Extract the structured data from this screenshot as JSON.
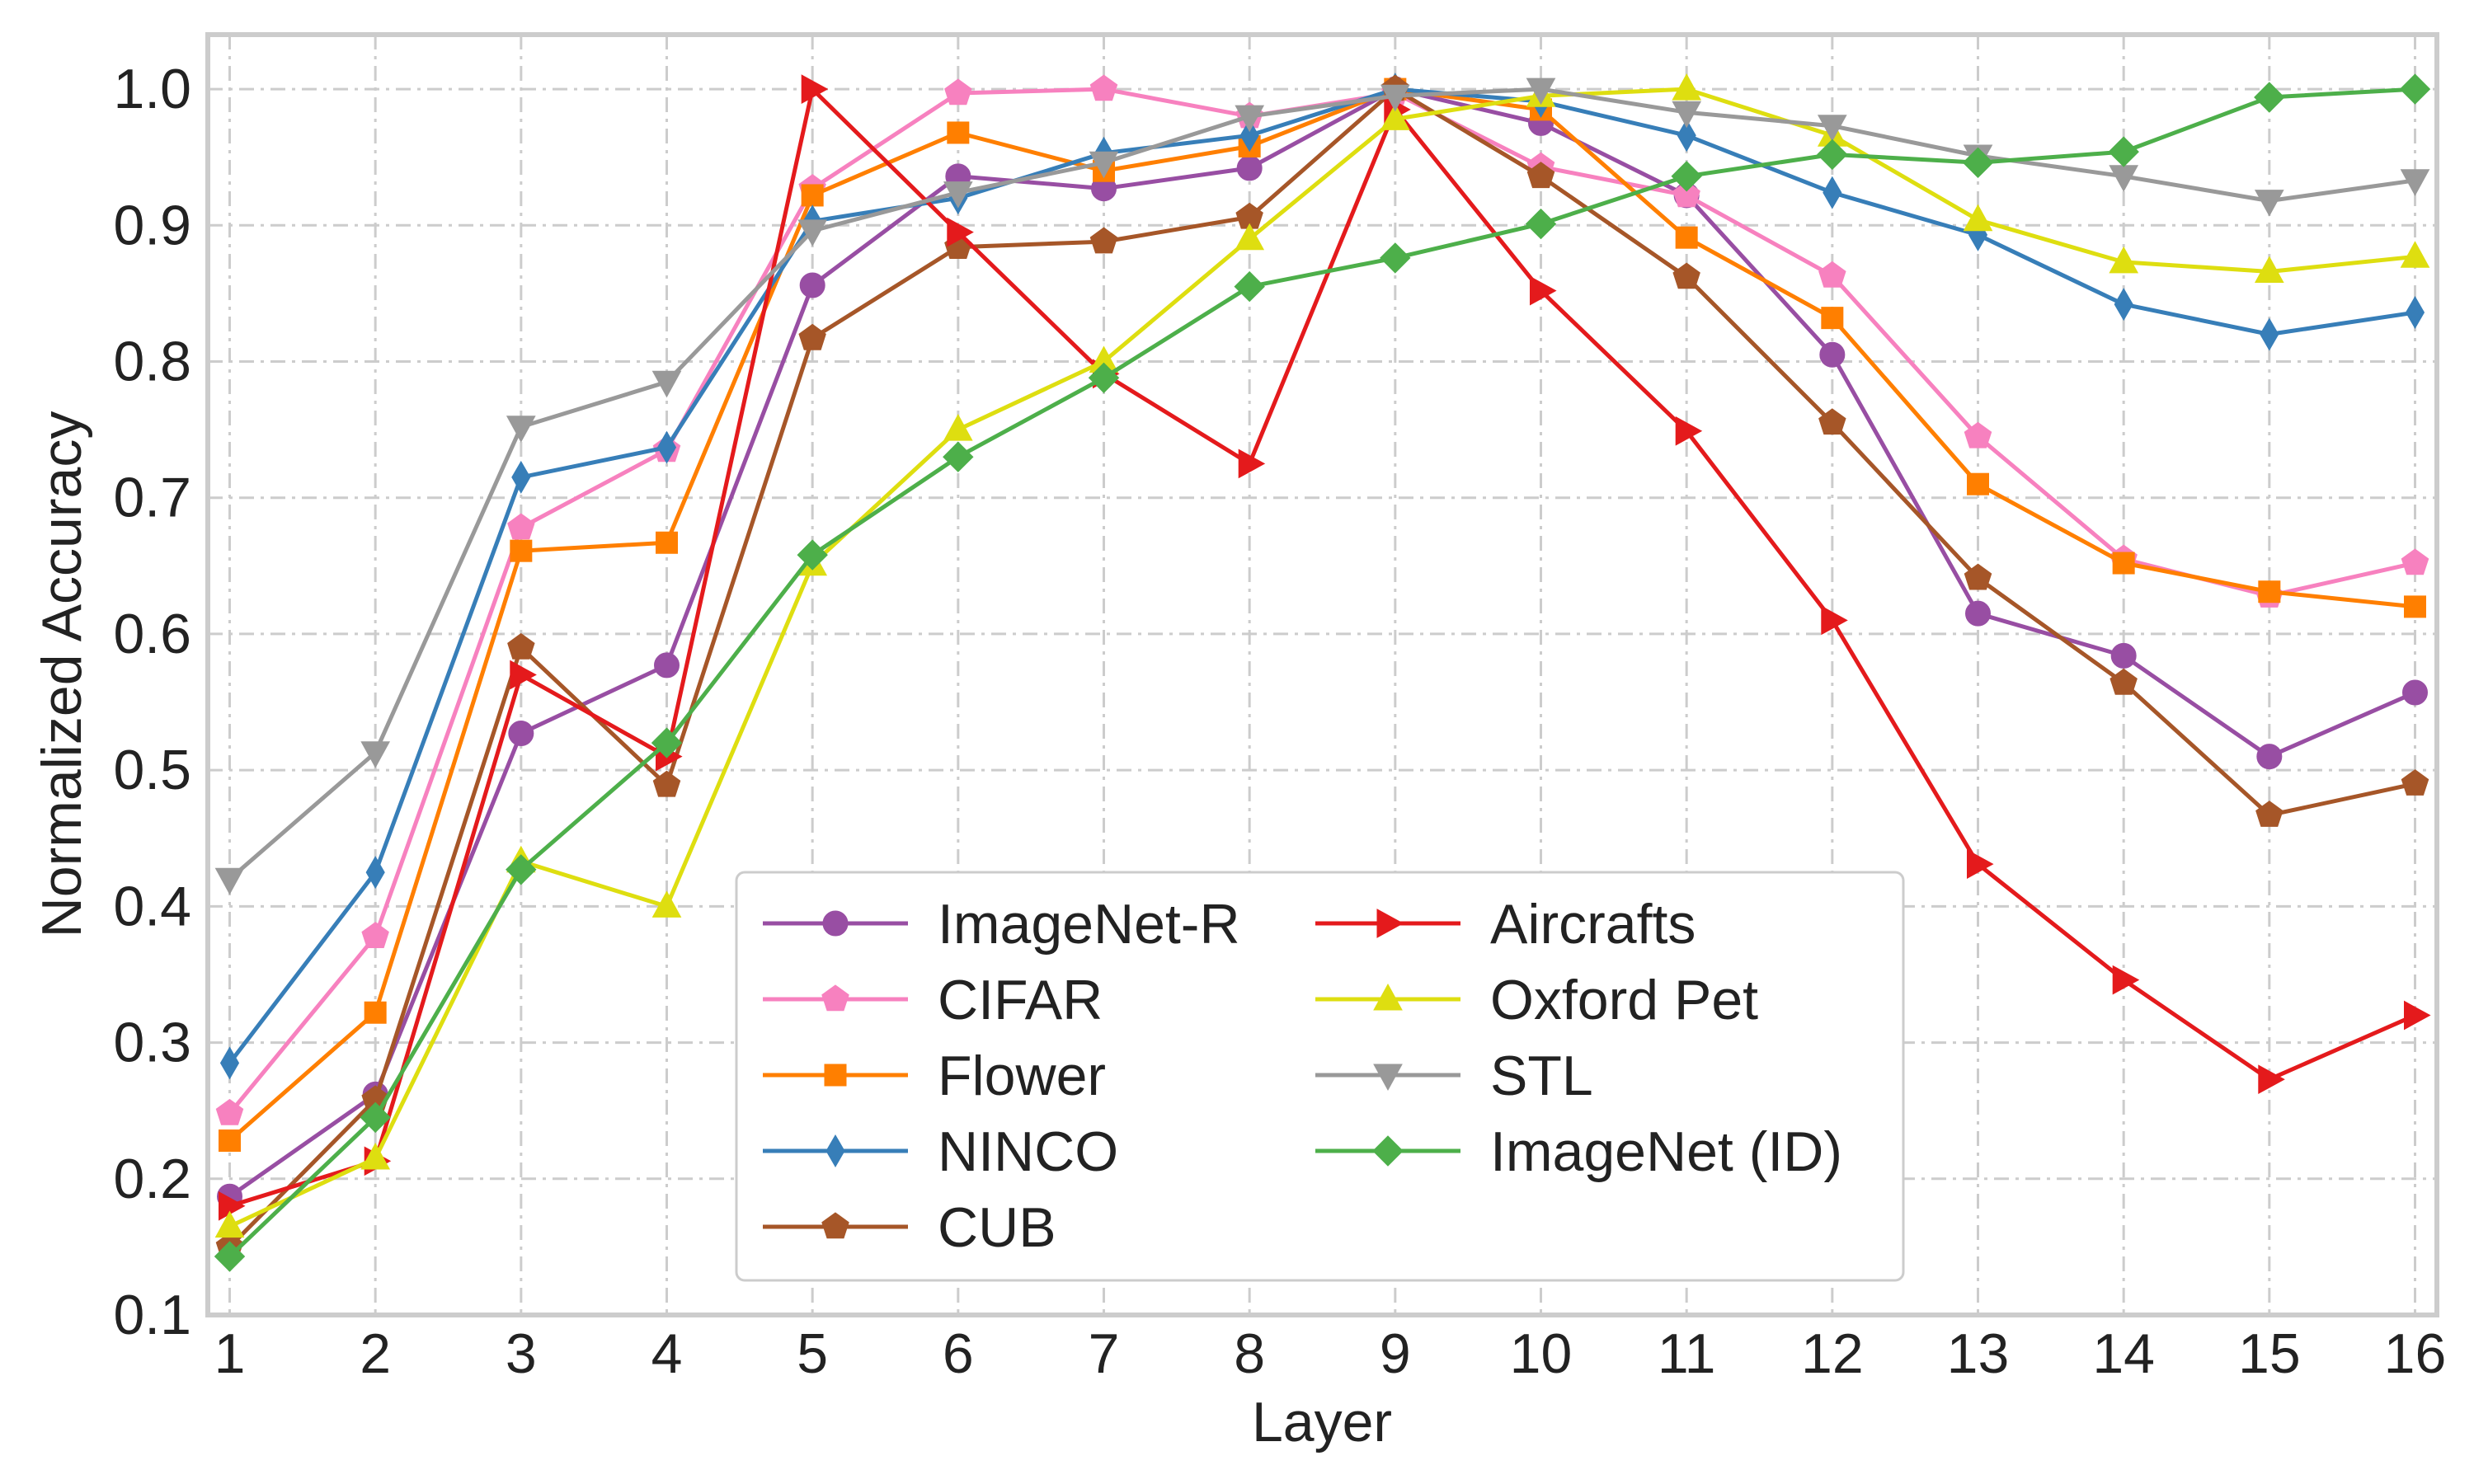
{
  "chart_data": {
    "type": "line",
    "title": "",
    "xlabel": "Layer",
    "ylabel": "Normalized  Accuracy",
    "x": [
      1,
      2,
      3,
      4,
      5,
      6,
      7,
      8,
      9,
      10,
      11,
      12,
      13,
      14,
      15,
      16
    ],
    "xticks": [
      "1",
      "2",
      "3",
      "4",
      "5",
      "6",
      "7",
      "8",
      "9",
      "10",
      "11",
      "12",
      "13",
      "14",
      "15",
      "16"
    ],
    "yticks": [
      "0.1",
      "0.2",
      "0.3",
      "0.4",
      "0.5",
      "0.6",
      "0.7",
      "0.8",
      "0.9",
      "1.0"
    ],
    "xlim": [
      0.85,
      16.15
    ],
    "ylim": [
      0.1,
      1.04
    ],
    "grid": true,
    "legend_position": "lower-center",
    "series": [
      {
        "name": "ImageNet-R",
        "color": "#984ea3",
        "marker": "circle",
        "values": [
          0.187,
          0.262,
          0.527,
          0.577,
          0.856,
          0.936,
          0.927,
          0.942,
          1.0,
          0.975,
          0.922,
          0.805,
          0.615,
          0.584,
          0.51,
          0.557
        ]
      },
      {
        "name": "CIFAR",
        "color": "#f781bf",
        "marker": "pentagon",
        "values": [
          0.248,
          0.378,
          0.678,
          0.735,
          0.927,
          0.997,
          1.0,
          0.98,
          0.997,
          0.943,
          0.922,
          0.863,
          0.745,
          0.655,
          0.628,
          0.652
        ]
      },
      {
        "name": "Flower",
        "color": "#ff7f00",
        "marker": "square",
        "values": [
          0.228,
          0.322,
          0.661,
          0.667,
          0.922,
          0.968,
          0.94,
          0.958,
          1.0,
          0.985,
          0.891,
          0.832,
          0.71,
          0.652,
          0.631,
          0.62
        ]
      },
      {
        "name": "NINCO",
        "color": "#377eb8",
        "marker": "thin-diamond",
        "values": [
          0.285,
          0.425,
          0.715,
          0.737,
          0.903,
          0.92,
          0.953,
          0.966,
          1.0,
          0.991,
          0.966,
          0.924,
          0.893,
          0.842,
          0.82,
          0.836
        ]
      },
      {
        "name": "CUB",
        "color": "#a65628",
        "marker": "pentagon",
        "values": [
          0.15,
          0.258,
          0.59,
          0.489,
          0.817,
          0.884,
          0.888,
          0.906,
          1.0,
          0.936,
          0.862,
          0.755,
          0.641,
          0.564,
          0.467,
          0.49
        ]
      },
      {
        "name": "Aircrafts",
        "color": "#e41a1c",
        "marker": "triangle-right",
        "values": [
          0.18,
          0.213,
          0.57,
          0.51,
          1.0,
          0.895,
          0.791,
          0.725,
          0.985,
          0.852,
          0.749,
          0.61,
          0.431,
          0.346,
          0.273,
          0.32
        ]
      },
      {
        "name": "Oxford Pet",
        "color": "#dede10",
        "marker": "triangle-up",
        "values": [
          0.165,
          0.215,
          0.433,
          0.4,
          0.651,
          0.75,
          0.8,
          0.89,
          0.978,
          0.995,
          1.0,
          0.966,
          0.904,
          0.873,
          0.866,
          0.877
        ]
      },
      {
        "name": "STL",
        "color": "#999999",
        "marker": "triangle-down",
        "values": [
          0.42,
          0.513,
          0.752,
          0.785,
          0.896,
          0.924,
          0.946,
          0.98,
          0.995,
          1.0,
          0.983,
          0.973,
          0.951,
          0.936,
          0.918,
          0.933
        ]
      },
      {
        "name": "ImageNet (ID)",
        "color": "#4daf4a",
        "marker": "diamond",
        "values": [
          0.143,
          0.245,
          0.427,
          0.52,
          0.658,
          0.73,
          0.788,
          0.855,
          0.876,
          0.901,
          0.936,
          0.952,
          0.946,
          0.954,
          0.994,
          1.0
        ]
      }
    ]
  }
}
